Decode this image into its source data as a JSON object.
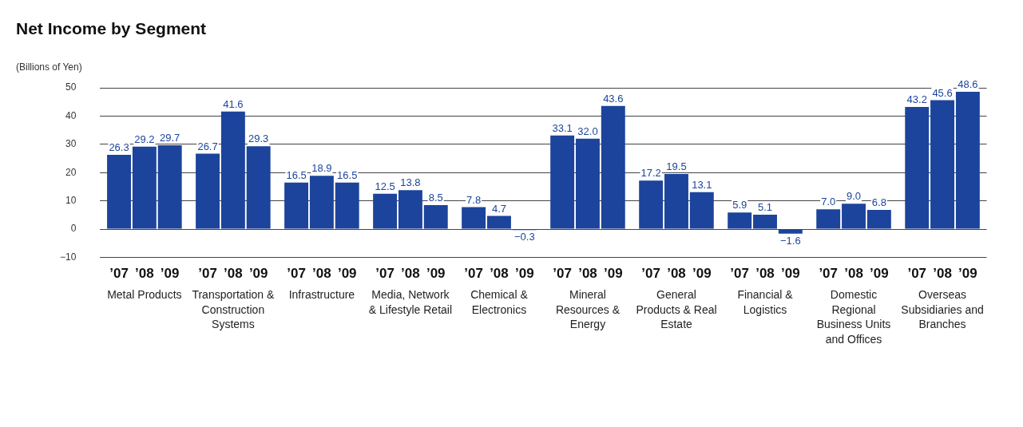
{
  "chart_data": {
    "type": "bar",
    "title": "Net Income by Segment",
    "ylabel": "(Billions of Yen)",
    "categories": [
      "Metal Products",
      "Transportation & Construction Systems",
      "Infrastructure",
      "Media, Network & Lifestyle Retail",
      "Chemical & Electronics",
      "Mineral Resources & Energy",
      "General Products & Real Estate",
      "Financial & Logistics",
      "Domestic Regional Business Units and Offices",
      "Overseas Subsidiaries and Branches"
    ],
    "series": [
      {
        "name": "’07",
        "color": "#1c449c",
        "values": [
          26.3,
          26.7,
          16.5,
          12.5,
          7.8,
          33.1,
          17.2,
          5.9,
          7.0,
          43.2
        ],
        "value_labels": [
          "26.3",
          "26.7",
          "16.5",
          "12.5",
          "7.8",
          "33.1",
          "17.2",
          "5.9",
          "7.0",
          "43.2"
        ]
      },
      {
        "name": "’08",
        "color": "#1c449c",
        "values": [
          29.2,
          41.6,
          18.9,
          13.8,
          4.7,
          32.0,
          19.5,
          5.1,
          9.0,
          45.6
        ],
        "value_labels": [
          "29.2",
          "41.6",
          "18.9",
          "13.8",
          "4.7",
          "32.0",
          "19.5",
          "5.1",
          "9.0",
          "45.6"
        ]
      },
      {
        "name": "’09",
        "color": "#1c449c",
        "values": [
          29.7,
          29.3,
          16.5,
          8.5,
          -0.3,
          43.6,
          13.1,
          -1.6,
          6.8,
          48.6
        ],
        "value_labels": [
          "29.7",
          "29.3",
          "16.5",
          "8.5",
          "−0.3",
          "43.6",
          "13.1",
          "−1.6",
          "6.8",
          "48.6"
        ]
      }
    ],
    "ylim": [
      -10,
      50
    ],
    "yticks": [
      {
        "value": -10,
        "label": "−10"
      },
      0,
      10,
      20,
      30,
      40,
      50
    ],
    "grid": "y"
  }
}
